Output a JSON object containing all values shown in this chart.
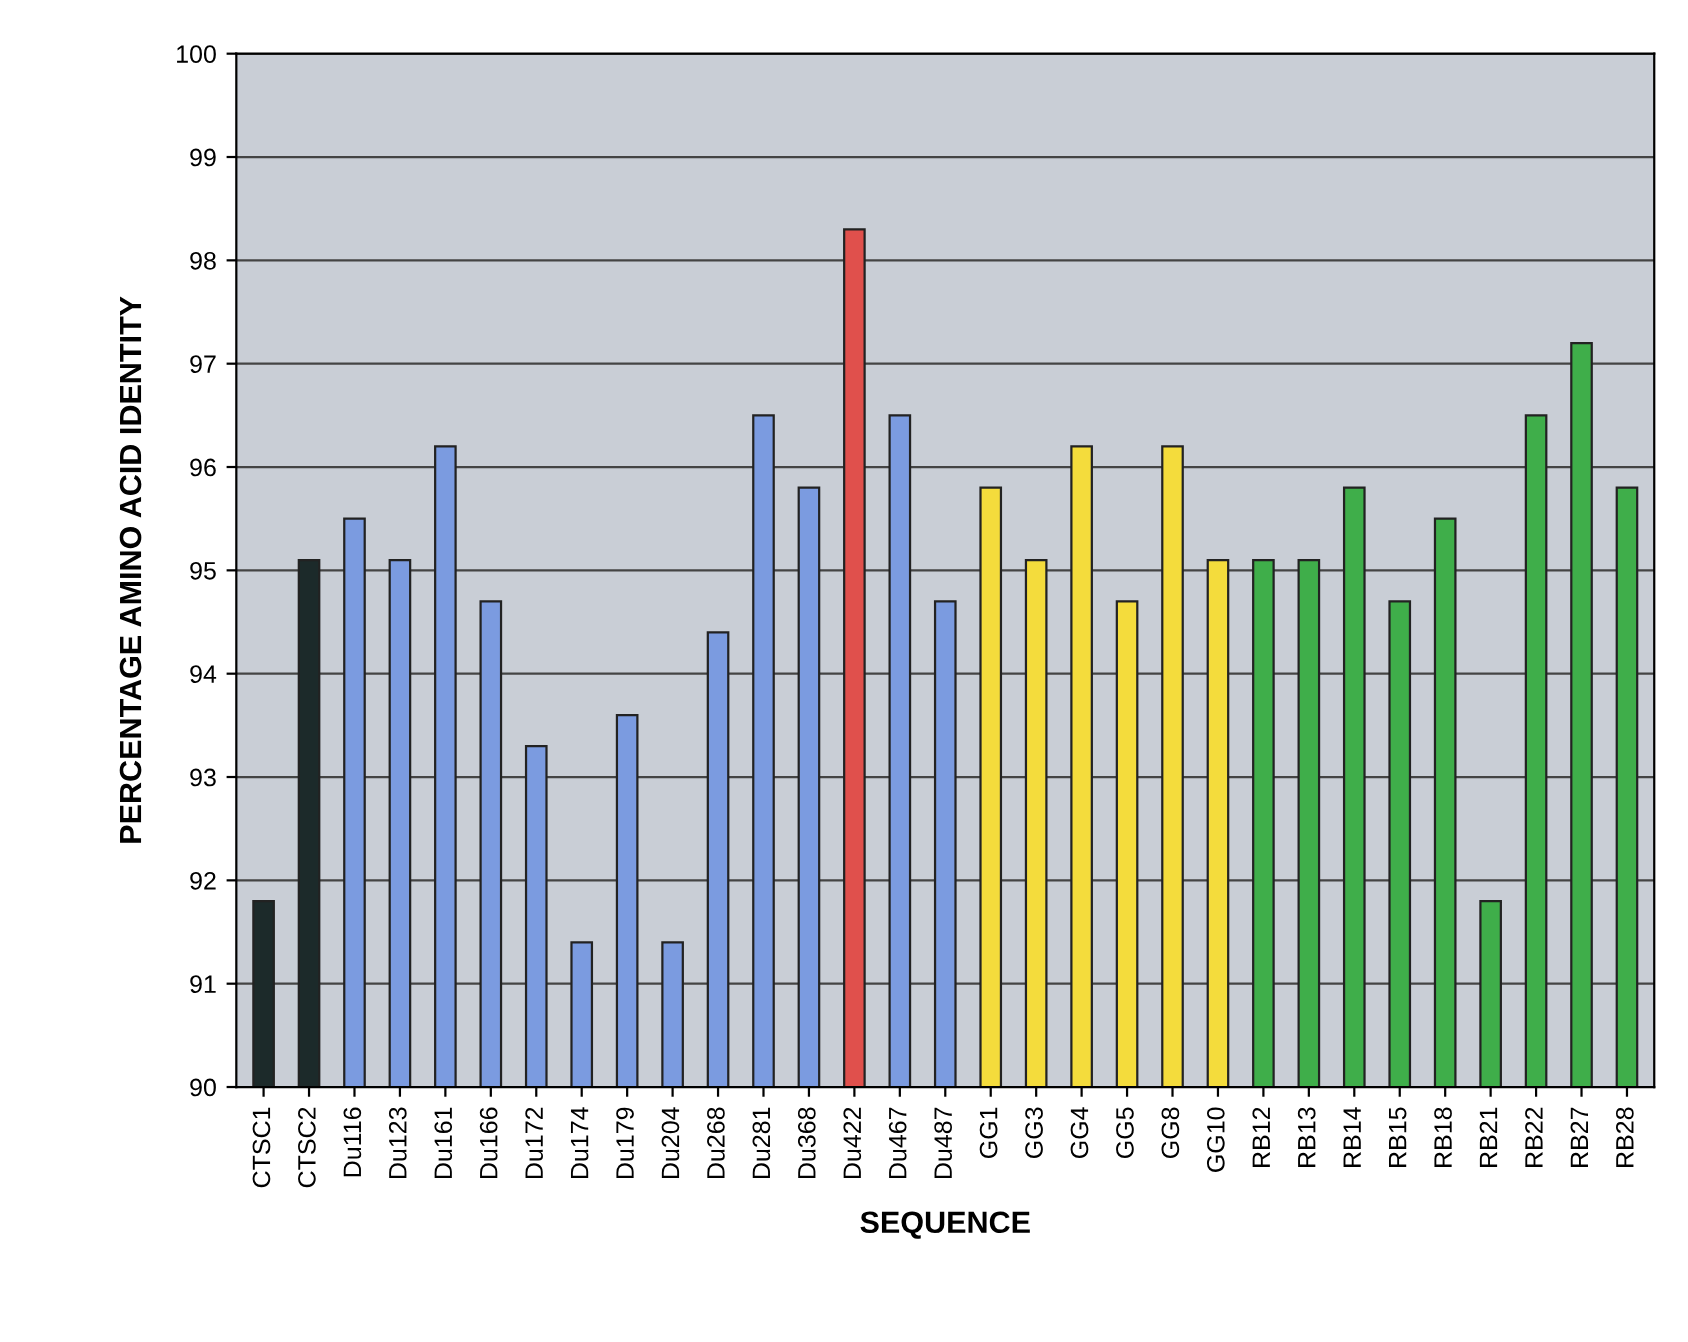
{
  "chart_data": {
    "type": "bar",
    "xlabel": "SEQUENCE",
    "ylabel": "PERCENTAGE AMINO ACID IDENTITY",
    "categories": [
      "CTSC1",
      "CTSC2",
      "Du116",
      "Du123",
      "Du161",
      "Du166",
      "Du172",
      "Du174",
      "Du179",
      "Du204",
      "Du268",
      "Du281",
      "Du368",
      "Du422",
      "Du467",
      "Du487",
      "GG1",
      "GG3",
      "GG4",
      "GG5",
      "GG8",
      "GG10",
      "RB12",
      "RB13",
      "RB14",
      "RB15",
      "RB18",
      "RB21",
      "RB22",
      "RB27",
      "RB28"
    ],
    "values": [
      91.8,
      95.1,
      95.5,
      95.1,
      96.2,
      94.7,
      93.3,
      91.4,
      93.6,
      91.4,
      94.4,
      96.5,
      95.8,
      98.3,
      96.5,
      94.7,
      95.8,
      95.1,
      96.2,
      94.7,
      96.2,
      95.1,
      95.1,
      95.1,
      95.8,
      94.7,
      95.5,
      91.8,
      96.5,
      97.2,
      95.8
    ],
    "colors": [
      "#1c2a2a",
      "#1c2a2a",
      "#7b9be0",
      "#7b9be0",
      "#7b9be0",
      "#7b9be0",
      "#7b9be0",
      "#7b9be0",
      "#7b9be0",
      "#7b9be0",
      "#7b9be0",
      "#7b9be0",
      "#7b9be0",
      "#e0504c",
      "#7b9be0",
      "#7b9be0",
      "#f4dc3c",
      "#f4dc3c",
      "#f4dc3c",
      "#f4dc3c",
      "#f4dc3c",
      "#f4dc3c",
      "#3fae4a",
      "#3fae4a",
      "#3fae4a",
      "#3fae4a",
      "#3fae4a",
      "#3fae4a",
      "#3fae4a",
      "#3fae4a",
      "#3fae4a"
    ],
    "ylim": [
      90,
      100
    ],
    "yticks": [
      90,
      91,
      92,
      93,
      94,
      95,
      96,
      97,
      98,
      99,
      100
    ],
    "grid": "y",
    "legend": false
  }
}
